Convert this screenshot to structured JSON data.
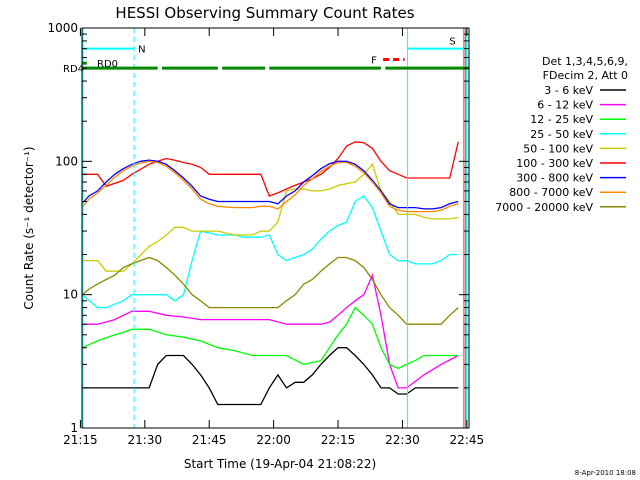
{
  "chart_data": {
    "type": "line",
    "title": "HESSI Observing Summary Count Rates",
    "xlabel": "Start Time (19-Apr-04 21:08:22)",
    "ylabel": "Count Rate (s⁻¹ detector⁻¹)",
    "y_scale": "log",
    "ylim": [
      1,
      1000
    ],
    "xlim": [
      8.37,
      98.5
    ],
    "x_unit": "minutes after 21:07",
    "x_ticks": [
      {
        "t": 8,
        "label": "21:15"
      },
      {
        "t": 23,
        "label": "21:30"
      },
      {
        "t": 38,
        "label": "21:45"
      },
      {
        "t": 53,
        "label": "22:00"
      },
      {
        "t": 68,
        "label": "22:15"
      },
      {
        "t": 83,
        "label": "22:30"
      },
      {
        "t": 98,
        "label": "22:45"
      }
    ],
    "y_ticks": [
      {
        "v": 1,
        "label": "1"
      },
      {
        "v": 10,
        "label": "10"
      },
      {
        "v": 100,
        "label": "100"
      },
      {
        "v": 1000,
        "label": "1000"
      }
    ],
    "grid": false,
    "legend_position": "right",
    "legend_header": [
      "Det 1,3,4,5,6,9,",
      "FDecim 2, Att 0"
    ],
    "series": [
      {
        "name": "3 - 6 keV",
        "color": "#000000",
        "x": [
          8.4,
          20,
          24,
          26,
          28,
          30,
          32,
          34,
          36,
          38,
          40,
          44,
          46,
          48,
          50,
          52,
          54,
          56,
          58,
          60,
          62,
          64,
          66,
          68,
          70,
          72,
          74,
          76,
          78,
          80,
          82,
          84,
          86,
          88,
          90,
          92,
          94,
          96
        ],
        "y": [
          2.0,
          2.0,
          2.0,
          3.0,
          3.5,
          3.5,
          3.5,
          3.0,
          2.5,
          2.0,
          1.5,
          1.5,
          1.5,
          1.5,
          1.5,
          2.0,
          2.5,
          2.0,
          2.2,
          2.2,
          2.5,
          3.0,
          3.5,
          4.0,
          4.0,
          3.5,
          3.0,
          2.5,
          2.0,
          2.0,
          1.8,
          1.8,
          2.0,
          2.0,
          2.0,
          2.0,
          2.0,
          2.0
        ]
      },
      {
        "name": "6 - 12 keV",
        "color": "#ff00ff",
        "x": [
          8.4,
          12,
          16,
          18,
          20,
          24,
          28,
          32,
          36,
          40,
          44,
          48,
          52,
          56,
          60,
          64,
          66,
          68,
          70,
          72,
          74,
          76,
          78,
          80,
          82,
          84,
          88,
          92,
          96
        ],
        "y": [
          6.0,
          6.0,
          6.5,
          7.0,
          7.5,
          7.5,
          7.0,
          6.8,
          6.5,
          6.5,
          6.5,
          6.5,
          6.5,
          6.0,
          6.0,
          6.0,
          6.2,
          7.0,
          8.0,
          9.0,
          10.0,
          14.0,
          7.0,
          3.0,
          2.0,
          2.0,
          2.5,
          3.0,
          3.5
        ]
      },
      {
        "name": "12 - 25 keV",
        "color": "#00ff00",
        "x": [
          8.4,
          12,
          16,
          18,
          20,
          24,
          28,
          32,
          36,
          40,
          44,
          48,
          52,
          56,
          60,
          64,
          66,
          68,
          70,
          72,
          74,
          76,
          78,
          80,
          82,
          84,
          86,
          88,
          92,
          96
        ],
        "y": [
          4.0,
          4.5,
          5.0,
          5.2,
          5.5,
          5.5,
          5.0,
          4.8,
          4.5,
          4.0,
          3.8,
          3.5,
          3.5,
          3.5,
          3.0,
          3.2,
          4.0,
          5.0,
          6.0,
          8.0,
          7.0,
          6.0,
          4.0,
          3.0,
          2.8,
          3.0,
          3.2,
          3.5,
          3.5,
          3.5
        ]
      },
      {
        "name": "25 - 50 keV",
        "color": "#00ffff",
        "x": [
          8.4,
          12,
          14,
          18,
          20,
          24,
          28,
          30,
          32,
          34,
          36,
          38,
          40,
          44,
          46,
          48,
          50,
          52,
          54,
          56,
          58,
          60,
          62,
          64,
          66,
          68,
          70,
          72,
          74,
          76,
          78,
          80,
          82,
          84,
          86,
          88,
          90,
          92,
          94,
          96
        ],
        "y": [
          10,
          8,
          8,
          9,
          10,
          10,
          10,
          9,
          10,
          18,
          30,
          29,
          28,
          28,
          27,
          27,
          27,
          28,
          20,
          18,
          19,
          20,
          22,
          26,
          30,
          33,
          35,
          50,
          55,
          45,
          30,
          20,
          18,
          18,
          17,
          17,
          17,
          18,
          20,
          20
        ]
      },
      {
        "name": "50 - 100 keV",
        "color": "#cccc00",
        "x": [
          8.4,
          12,
          14,
          18,
          20,
          24,
          26,
          28,
          30,
          32,
          34,
          36,
          38,
          40,
          44,
          46,
          48,
          50,
          52,
          54,
          56,
          58,
          60,
          62,
          64,
          66,
          68,
          70,
          72,
          74,
          76,
          78,
          80,
          82,
          84,
          86,
          88,
          90,
          92,
          94,
          96
        ],
        "y": [
          18,
          18,
          15,
          15,
          17,
          23,
          25,
          28,
          32,
          32,
          30,
          30,
          30,
          30,
          28,
          28,
          28,
          30,
          30,
          35,
          60,
          62,
          62,
          60,
          60,
          62,
          66,
          68,
          70,
          80,
          95,
          60,
          50,
          40,
          40,
          40,
          38,
          37,
          37,
          37,
          38
        ]
      },
      {
        "name": "100 - 300 keV",
        "color": "#ff0000",
        "x": [
          8.4,
          10,
          12,
          14,
          18,
          20,
          24,
          26,
          28,
          30,
          32,
          34,
          36,
          38,
          40,
          44,
          46,
          48,
          50,
          52,
          54,
          56,
          58,
          60,
          62,
          64,
          66,
          68,
          70,
          72,
          74,
          76,
          78,
          80,
          82,
          84,
          86,
          88,
          90,
          92,
          94,
          96
        ],
        "y": [
          80,
          80,
          80,
          65,
          72,
          80,
          95,
          100,
          105,
          102,
          98,
          95,
          90,
          80,
          80,
          80,
          80,
          80,
          80,
          55,
          58,
          62,
          66,
          70,
          74,
          80,
          90,
          105,
          130,
          140,
          138,
          125,
          100,
          85,
          80,
          75,
          75,
          75,
          75,
          75,
          75,
          140
        ]
      },
      {
        "name": "300 - 800 keV",
        "color": "#0000ff",
        "x": [
          8.4,
          10,
          12,
          14,
          16,
          18,
          20,
          22,
          24,
          26,
          28,
          30,
          32,
          34,
          36,
          38,
          40,
          44,
          46,
          48,
          50,
          52,
          54,
          56,
          58,
          60,
          62,
          64,
          66,
          68,
          70,
          72,
          74,
          76,
          78,
          80,
          82,
          84,
          86,
          88,
          90,
          92,
          94,
          96
        ],
        "y": [
          48,
          55,
          60,
          70,
          80,
          88,
          95,
          100,
          102,
          100,
          95,
          85,
          75,
          65,
          55,
          52,
          50,
          50,
          50,
          50,
          50,
          50,
          48,
          55,
          60,
          70,
          78,
          88,
          96,
          100,
          100,
          95,
          85,
          72,
          60,
          48,
          45,
          45,
          45,
          44,
          44,
          45,
          48,
          50
        ]
      },
      {
        "name": "800 - 7000 keV",
        "color": "#ff8800",
        "x": [
          8.4,
          10,
          12,
          14,
          16,
          18,
          20,
          22,
          24,
          26,
          28,
          30,
          32,
          34,
          36,
          38,
          40,
          44,
          46,
          48,
          50,
          52,
          54,
          56,
          58,
          60,
          62,
          64,
          66,
          68,
          70,
          72,
          74,
          76,
          78,
          80,
          82,
          84,
          86,
          88,
          90,
          92,
          94,
          96
        ],
        "y": [
          45,
          52,
          58,
          66,
          76,
          85,
          92,
          97,
          100,
          98,
          92,
          82,
          72,
          62,
          52,
          48,
          46,
          45,
          45,
          45,
          46,
          46,
          44,
          50,
          56,
          66,
          74,
          84,
          92,
          98,
          98,
          92,
          82,
          70,
          58,
          46,
          43,
          42,
          42,
          42,
          42,
          43,
          46,
          48
        ]
      },
      {
        "name": "7000 - 20000 keV",
        "color": "#888800",
        "x": [
          8.4,
          10,
          12,
          14,
          16,
          18,
          20,
          22,
          24,
          26,
          28,
          30,
          32,
          34,
          36,
          38,
          40,
          44,
          46,
          48,
          50,
          52,
          54,
          56,
          58,
          60,
          62,
          64,
          66,
          68,
          70,
          72,
          74,
          76,
          78,
          80,
          82,
          84,
          86,
          88,
          90,
          92,
          94,
          96
        ],
        "y": [
          10,
          11,
          12,
          13,
          14,
          16,
          17,
          18,
          19,
          18,
          16,
          14,
          12,
          10,
          9,
          8,
          8,
          8,
          8,
          8,
          8,
          8,
          8,
          9,
          10,
          12,
          13,
          15,
          17,
          19,
          19,
          18,
          16,
          13,
          10,
          8,
          7,
          6,
          6,
          6,
          6,
          6,
          7,
          8
        ]
      }
    ],
    "annotations": [
      {
        "label": "RD0",
        "color": "#008800",
        "y": 545
      },
      {
        "label": "RD4",
        "color": "#008800",
        "y": 500
      },
      {
        "label": "N",
        "color": "#00ffff",
        "y": 700
      },
      {
        "label": "F",
        "color": "#ff0000",
        "y": 580
      },
      {
        "label": "S",
        "color": "#ff8800",
        "y": 700
      }
    ],
    "footer_timestamp": "8-Apr-2010 18:08"
  }
}
